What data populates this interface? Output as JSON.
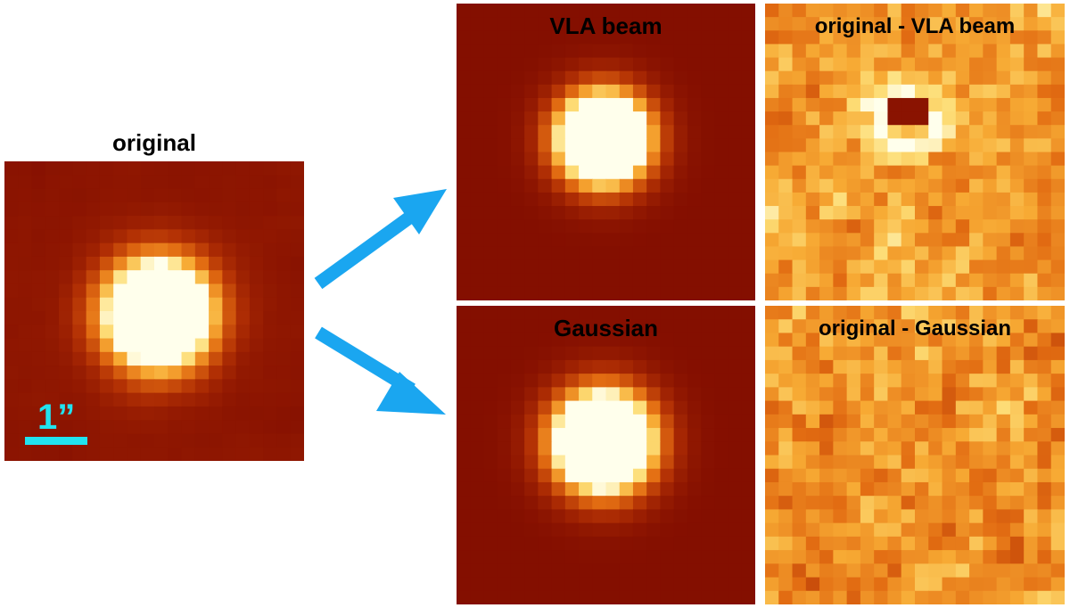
{
  "panels": {
    "original": {
      "title": "original"
    },
    "vla_beam": {
      "title": "VLA beam"
    },
    "residual_vla": {
      "title": "original - VLA beam"
    },
    "gaussian": {
      "title": "Gaussian"
    },
    "residual_gaussian": {
      "title": "original - Gaussian"
    }
  },
  "scale_bar": {
    "label": "1”"
  },
  "colors": {
    "arrow": "#1aa6f0",
    "scale": "#21e3f0",
    "background_map": "#861000"
  }
}
